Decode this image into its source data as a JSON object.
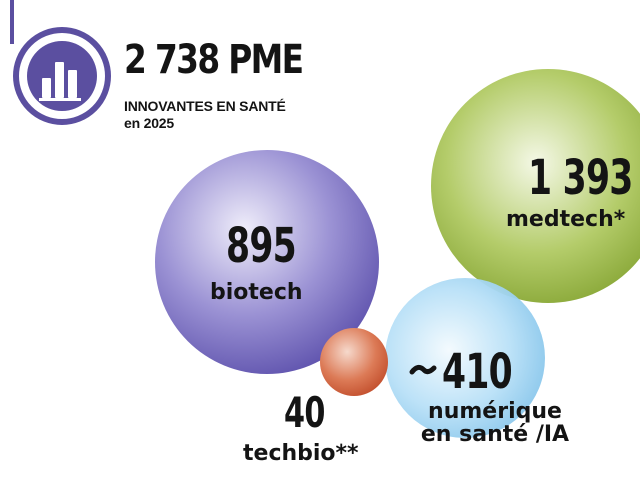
{
  "header": {
    "headline": "2 738 PME",
    "subline_1": "INNOVANTES EN SANTÉ",
    "subline_2": "en 2025",
    "icon": "bar-chart-icon"
  },
  "colors": {
    "biotech": "#6a5fb8",
    "medtech": "#8fae3c",
    "techbio": "#d66a48",
    "numerique": "#8ccaf0",
    "accent": "#5b4fa0"
  },
  "chart_data": {
    "type": "bubble",
    "categories": [
      "biotech",
      "medtech*",
      "techbio**",
      "numérique en santé /IA"
    ],
    "values": [
      895,
      1393,
      40,
      410
    ],
    "labels": {
      "biotech": "biotech",
      "medtech": "medtech*",
      "techbio": "techbio**",
      "numerique_1": "numérique",
      "numerique_2": "en santé /IA"
    },
    "value_labels": {
      "biotech": "895",
      "medtech": "1 393",
      "techbio": "40",
      "numerique": "410"
    }
  }
}
